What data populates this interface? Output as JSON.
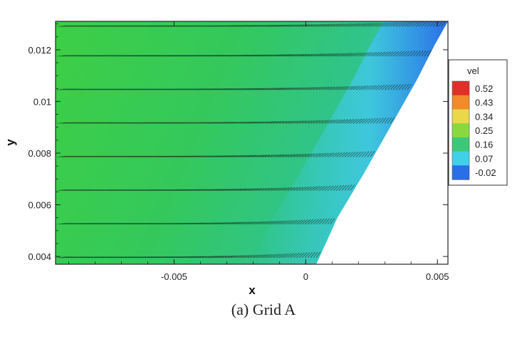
{
  "caption": "(a) Grid A",
  "chart_data": {
    "type": "heatmap",
    "title": "",
    "xlabel": "x",
    "ylabel": "y",
    "xlim": [
      -0.0095,
      0.0054
    ],
    "ylim": [
      0.0037,
      0.0131
    ],
    "x_ticks": [
      {
        "value": -0.005,
        "label": "-0.005"
      },
      {
        "value": 0,
        "label": "0"
      },
      {
        "value": 0.005,
        "label": "0.005"
      }
    ],
    "y_ticks": [
      {
        "value": 0.004,
        "label": "0.004"
      },
      {
        "value": 0.006,
        "label": "0.006"
      },
      {
        "value": 0.008,
        "label": "0.008"
      },
      {
        "value": 0.01,
        "label": "0.01"
      },
      {
        "value": 0.012,
        "label": "0.012"
      }
    ],
    "colorbar": {
      "title": "vel",
      "placement": "right",
      "levels": [
        0.52,
        0.43,
        0.34,
        0.25,
        0.16,
        0.07,
        -0.02
      ],
      "labels": [
        "0.52",
        "0.43",
        "0.34",
        "0.25",
        "0.16",
        "0.07",
        "-0.02"
      ],
      "colors": [
        "#e0302a",
        "#f08a2a",
        "#e8d84a",
        "#8ad840",
        "#3cc878",
        "#40d0e8",
        "#2a6ee8"
      ]
    },
    "boundary": {
      "description_free": true,
      "points": [
        {
          "x": 0.0004,
          "y": 0.0037
        },
        {
          "x": 0.0012,
          "y": 0.0055
        },
        {
          "x": 0.0022,
          "y": 0.0072
        },
        {
          "x": 0.0032,
          "y": 0.009
        },
        {
          "x": 0.0042,
          "y": 0.0108
        },
        {
          "x": 0.0049,
          "y": 0.0122
        },
        {
          "x": 0.0054,
          "y": 0.0131
        }
      ]
    },
    "vector_rows_y": [
      0.00395,
      0.00525,
      0.00655,
      0.00785,
      0.00915,
      0.01045,
      0.01175,
      0.0129
    ],
    "grid": false
  }
}
